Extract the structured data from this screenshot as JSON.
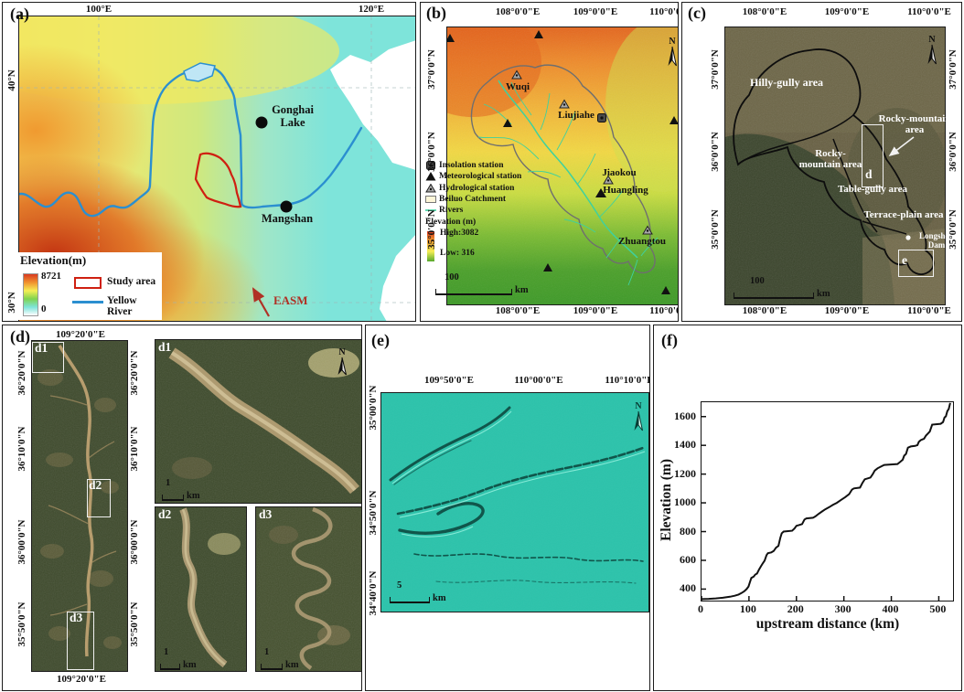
{
  "panels": {
    "a": {
      "label": "(a)",
      "lon_ticks": [
        "100°E",
        "120°E"
      ],
      "lat_ticks": [
        "40°N",
        "30°N"
      ],
      "gonghai": "Gonghai Lake",
      "mangshan": "Mangshan",
      "easm": "EASM",
      "legend": {
        "title": "Elevation(m)",
        "max": "8721",
        "min": "0",
        "study_area": "Study area",
        "yellow_river": "Yellow River"
      }
    },
    "b": {
      "label": "(b)",
      "lon_ticks": [
        "108°0'0\"E",
        "109°0'0\"E",
        "110°0'0\"E"
      ],
      "lat_ticks": [
        "37°0'0\"N",
        "36°0'0\"N",
        "35°0'0\"N"
      ],
      "stations": {
        "wuqi": "Wuqi",
        "liujiahe": "Liujiahe",
        "jiaokou": "Jiaokou",
        "huangling": "Huangling",
        "zhuangtou": "Zhuangtou"
      },
      "legend": {
        "insolation": "Insolation station",
        "meteorological": "Meteorological station",
        "hydrological": "Hydrological station",
        "catchment": "Beiluo Catchment",
        "rivers": "Rivers",
        "elevation": "Elevation (m)",
        "high": "High:3082",
        "low": "Low: 316"
      },
      "scalebar": {
        "value": "100",
        "unit": "km"
      },
      "north": "N"
    },
    "c": {
      "label": "(c)",
      "lon_ticks": [
        "108°0'0\"E",
        "109°0'0\"E",
        "110°0'0\"E"
      ],
      "lat_ticks": [
        "37°0'0\"N",
        "36°0'0\"N",
        "35°0'0\"N"
      ],
      "areas": {
        "hilly": "Hilly-gully area",
        "rocky_right": "Rocky-mountain area",
        "rocky_center": "Rocky-mountain area",
        "table": "Table-gully area",
        "terrace": "Terrace-plain area"
      },
      "dam": "Longshou Dam",
      "inset_d": "d",
      "inset_e": "e",
      "scalebar": {
        "value": "100",
        "unit": "km"
      },
      "north": "N"
    },
    "d": {
      "label": "(d)",
      "lon_tick": "109°20'0\"E",
      "lat_ticks": [
        "36°20'0\"N",
        "36°10'0\"N",
        "36°00'0\"N",
        "35°50'0\"N"
      ],
      "insets": {
        "d1": "d1",
        "d2": "d2",
        "d3": "d3"
      },
      "scalebar": {
        "value": "1",
        "unit": "km"
      },
      "north": "N"
    },
    "e": {
      "label": "(e)",
      "lon_ticks": [
        "109°50'0\"E",
        "110°00'0\"E",
        "110°10'0\"E"
      ],
      "lat_ticks": [
        "35°00'0\"N",
        "34°50'0\"N",
        "34°40'0\"N"
      ],
      "scalebar": {
        "value": "5",
        "unit": "km"
      },
      "north": "N"
    },
    "f": {
      "label": "(f)"
    }
  },
  "chart_data": {
    "type": "line",
    "title": "",
    "xlabel": "upstream distance (km)",
    "ylabel": "Elevation (m)",
    "xlim": [
      0,
      530
    ],
    "ylim": [
      320,
      1700
    ],
    "xticks": [
      0,
      100,
      200,
      300,
      400,
      500
    ],
    "yticks": [
      400,
      600,
      800,
      1000,
      1200,
      1400,
      1600
    ],
    "grid": false,
    "legend_position": "none",
    "series": [
      {
        "x": [
          0,
          15,
          30,
          45,
          60,
          70,
          78,
          84,
          90,
          95,
          99,
          102,
          105,
          110,
          113,
          117,
          121,
          125,
          129,
          133,
          137,
          140,
          147,
          152,
          157,
          162,
          166,
          169,
          173,
          191,
          196,
          200,
          206,
          212,
          217,
          221,
          235,
          240,
          247,
          254,
          261,
          269,
          277,
          285,
          294,
          303,
          311,
          317,
          321,
          334,
          339,
          344,
          356,
          361,
          365,
          371,
          379,
          385,
          413,
          419,
          424,
          427,
          431,
          435,
          441,
          450,
          455,
          458,
          462,
          469,
          473,
          477,
          481,
          486,
          504,
          509,
          512,
          515,
          518,
          521,
          524
        ],
        "y": [
          330,
          332,
          335,
          340,
          347,
          354,
          362,
          372,
          385,
          400,
          418,
          448,
          478,
          487,
          500,
          508,
          535,
          558,
          578,
          598,
          636,
          650,
          655,
          665,
          688,
          700,
          755,
          788,
          800,
          806,
          822,
          840,
          846,
          852,
          884,
          892,
          896,
          906,
          924,
          940,
          955,
          970,
          986,
          1000,
          1020,
          1040,
          1060,
          1092,
          1100,
          1106,
          1138,
          1164,
          1176,
          1200,
          1224,
          1240,
          1254,
          1264,
          1270,
          1286,
          1300,
          1328,
          1340,
          1384,
          1392,
          1396,
          1402,
          1424,
          1436,
          1446,
          1468,
          1482,
          1496,
          1544,
          1550,
          1562,
          1594,
          1602,
          1638,
          1652,
          1695
        ]
      }
    ]
  },
  "colors": {
    "study_area_outline": "#cf2011",
    "yellow_river": "#2b8fd0",
    "beiluo_rivers": "#3fd19e",
    "easm_arrow": "#b03125",
    "elevation_high": "#d93a20",
    "elevation_low_cyan": "#7ee4da",
    "hillshade_teal": "#2cc3ab",
    "satellite_dark_green": "#3d4a2b",
    "profile_line": "#111111"
  }
}
